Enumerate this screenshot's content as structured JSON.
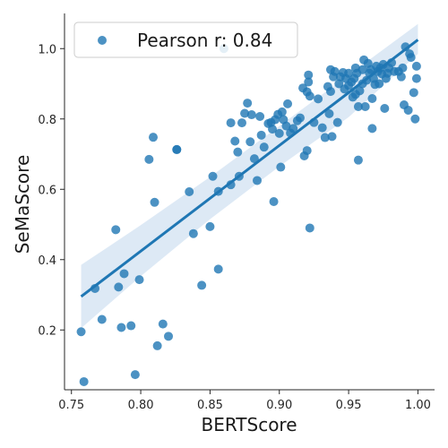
{
  "chart_data": {
    "type": "scatter",
    "xlabel": "BERTScore",
    "ylabel": "SeMaScore",
    "xlim": [
      0.745,
      1.012
    ],
    "ylim": [
      0.03,
      1.1
    ],
    "xticks": [
      0.75,
      0.8,
      0.85,
      0.9,
      0.95,
      1.0
    ],
    "xtick_labels": [
      "0.75",
      "0.80",
      "0.85",
      "0.90",
      "0.95",
      "1.00"
    ],
    "yticks": [
      0.2,
      0.4,
      0.6,
      0.8,
      1.0
    ],
    "ytick_labels": [
      "0.2",
      "0.4",
      "0.6",
      "0.8",
      "1.0"
    ],
    "grid": false,
    "legend": {
      "position": "top-left",
      "label": "Pearson r: 0.84"
    },
    "colors": {
      "points": "#1f77b4",
      "line": "#1f77b4",
      "band": "#c6dbef"
    },
    "regression": {
      "x": [
        0.757,
        1.0
      ],
      "y": [
        0.295,
        1.025
      ]
    },
    "ci_band": {
      "x": [
        0.757,
        0.8,
        0.85,
        0.9,
        0.95,
        1.0
      ],
      "upper": [
        0.385,
        0.498,
        0.635,
        0.78,
        0.925,
        1.07
      ],
      "lower": [
        0.205,
        0.353,
        0.515,
        0.665,
        0.805,
        0.985
      ]
    },
    "points": [
      [
        0.757,
        0.195
      ],
      [
        0.759,
        0.053
      ],
      [
        0.767,
        0.318
      ],
      [
        0.772,
        0.23
      ],
      [
        0.782,
        0.485
      ],
      [
        0.784,
        0.322
      ],
      [
        0.786,
        0.207
      ],
      [
        0.788,
        0.36
      ],
      [
        0.793,
        0.212
      ],
      [
        0.796,
        0.073
      ],
      [
        0.799,
        0.343
      ],
      [
        0.806,
        0.685
      ],
      [
        0.809,
        0.748
      ],
      [
        0.81,
        0.563
      ],
      [
        0.812,
        0.155
      ],
      [
        0.816,
        0.217
      ],
      [
        0.82,
        0.182
      ],
      [
        0.826,
        0.713
      ],
      [
        0.826,
        0.713
      ],
      [
        0.835,
        0.593
      ],
      [
        0.838,
        0.474
      ],
      [
        0.844,
        0.327
      ],
      [
        0.85,
        0.494
      ],
      [
        0.852,
        0.637
      ],
      [
        0.856,
        0.373
      ],
      [
        0.856,
        0.594
      ],
      [
        0.86,
        1.0
      ],
      [
        0.865,
        0.789
      ],
      [
        0.865,
        0.613
      ],
      [
        0.868,
        0.737
      ],
      [
        0.87,
        0.706
      ],
      [
        0.871,
        0.637
      ],
      [
        0.873,
        0.789
      ],
      [
        0.875,
        0.816
      ],
      [
        0.877,
        0.845
      ],
      [
        0.879,
        0.735
      ],
      [
        0.88,
        0.812
      ],
      [
        0.882,
        0.687
      ],
      [
        0.884,
        0.625
      ],
      [
        0.886,
        0.807
      ],
      [
        0.887,
        0.754
      ],
      [
        0.889,
        0.72
      ],
      [
        0.892,
        0.787
      ],
      [
        0.894,
        0.79
      ],
      [
        0.895,
        0.771
      ],
      [
        0.896,
        0.565
      ],
      [
        0.897,
        0.798
      ],
      [
        0.899,
        0.813
      ],
      [
        0.9,
        0.759
      ],
      [
        0.901,
        0.663
      ],
      [
        0.902,
        0.82
      ],
      [
        0.903,
        0.798
      ],
      [
        0.905,
        0.78
      ],
      [
        0.906,
        0.843
      ],
      [
        0.908,
        0.76
      ],
      [
        0.91,
        0.773
      ],
      [
        0.913,
        0.795
      ],
      [
        0.915,
        0.803
      ],
      [
        0.917,
        0.888
      ],
      [
        0.918,
        0.695
      ],
      [
        0.92,
        0.877
      ],
      [
        0.92,
        0.71
      ],
      [
        0.921,
        0.905
      ],
      [
        0.921,
        0.925
      ],
      [
        0.922,
        0.49
      ],
      [
        0.922,
        0.865
      ],
      [
        0.925,
        0.79
      ],
      [
        0.928,
        0.857
      ],
      [
        0.931,
        0.775
      ],
      [
        0.933,
        0.747
      ],
      [
        0.935,
        0.892
      ],
      [
        0.936,
        0.815
      ],
      [
        0.937,
        0.94
      ],
      [
        0.937,
        0.878
      ],
      [
        0.938,
        0.75
      ],
      [
        0.939,
        0.92
      ],
      [
        0.94,
        0.935
      ],
      [
        0.942,
        0.79
      ],
      [
        0.943,
        0.9
      ],
      [
        0.944,
        0.92
      ],
      [
        0.946,
        0.932
      ],
      [
        0.947,
        0.885
      ],
      [
        0.948,
        0.915
      ],
      [
        0.95,
        0.93
      ],
      [
        0.95,
        0.895
      ],
      [
        0.952,
        0.905
      ],
      [
        0.953,
        0.862
      ],
      [
        0.954,
        0.915
      ],
      [
        0.955,
        0.945
      ],
      [
        0.955,
        0.87
      ],
      [
        0.956,
        0.93
      ],
      [
        0.957,
        0.683
      ],
      [
        0.957,
        0.835
      ],
      [
        0.958,
        0.88
      ],
      [
        0.96,
        0.94
      ],
      [
        0.96,
        0.9
      ],
      [
        0.961,
        0.968
      ],
      [
        0.962,
        0.835
      ],
      [
        0.963,
        0.91
      ],
      [
        0.964,
        0.958
      ],
      [
        0.965,
        0.93
      ],
      [
        0.966,
        0.94
      ],
      [
        0.967,
        0.858
      ],
      [
        0.967,
        0.773
      ],
      [
        0.968,
        0.915
      ],
      [
        0.969,
        0.898
      ],
      [
        0.97,
        0.95
      ],
      [
        0.971,
        0.935
      ],
      [
        0.972,
        0.9
      ],
      [
        0.973,
        0.945
      ],
      [
        0.974,
        0.928
      ],
      [
        0.975,
        0.955
      ],
      [
        0.976,
        0.83
      ],
      [
        0.977,
        0.915
      ],
      [
        0.978,
        0.93
      ],
      [
        0.979,
        0.945
      ],
      [
        0.981,
        0.96
      ],
      [
        0.983,
        0.935
      ],
      [
        0.986,
        0.935
      ],
      [
        0.988,
        0.92
      ],
      [
        0.989,
        0.945
      ],
      [
        0.99,
        0.84
      ],
      [
        0.991,
        1.005
      ],
      [
        0.993,
        0.825
      ],
      [
        0.994,
        0.985
      ],
      [
        0.995,
        0.975
      ],
      [
        0.997,
        0.875
      ],
      [
        0.998,
        0.8
      ],
      [
        0.999,
        0.915
      ],
      [
        0.999,
        0.95
      ]
    ]
  }
}
